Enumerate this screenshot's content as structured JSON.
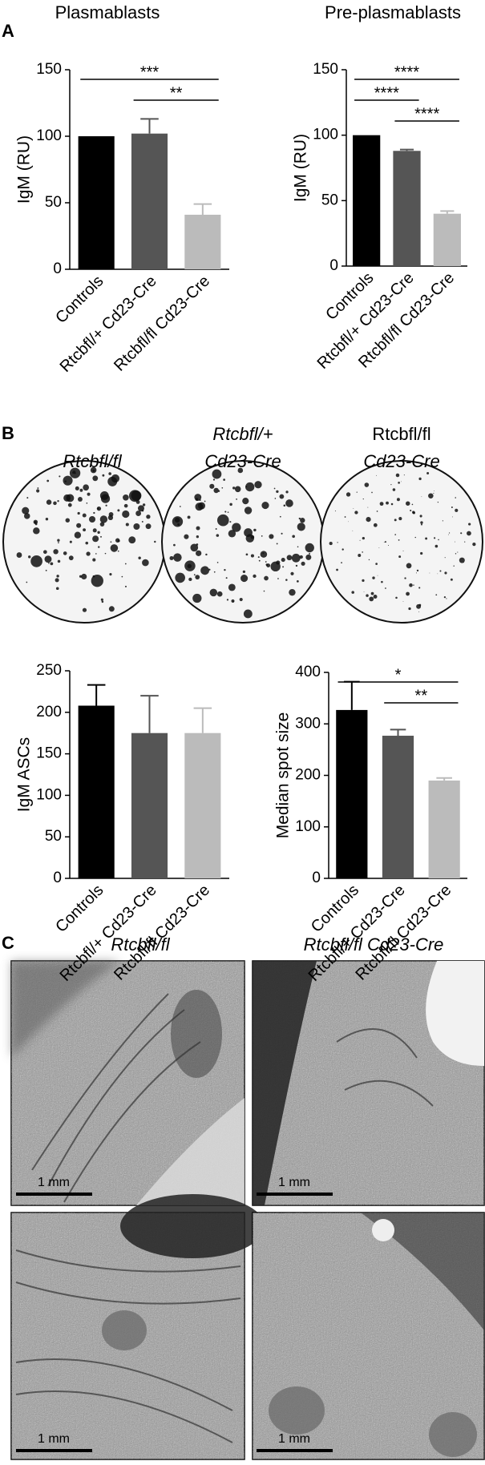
{
  "panel_labels": [
    "A",
    "B",
    "C"
  ],
  "chart_data": [
    {
      "type": "bar",
      "title": "Plasmablasts",
      "y_label": "IgM (RU)",
      "categories": [
        "Controls",
        "Rtcbfl/+ Cd23-Cre",
        "Rtcbfl/fl Cd23-Cre"
      ],
      "values": [
        100,
        102,
        41
      ],
      "errors": [
        null,
        11,
        8
      ],
      "colors": [
        "#000000",
        "#555555",
        "#bbbbbb"
      ],
      "ylim": [
        0,
        150
      ],
      "yticks": [
        0,
        50,
        100,
        150
      ],
      "annotations": [
        {
          "text": "***",
          "from": 0,
          "to": 2
        },
        {
          "text": "**",
          "from": 1,
          "to": 2
        }
      ]
    },
    {
      "type": "bar",
      "title": "Pre-plasmablasts",
      "y_label": "IgM (RU)",
      "categories": [
        "Controls",
        "Rtcbfl/+ Cd23-Cre",
        "Rtcbfl/fl Cd23-Cre"
      ],
      "values": [
        100,
        88,
        40
      ],
      "errors": [
        null,
        1,
        2
      ],
      "colors": [
        "#000000",
        "#555555",
        "#bbbbbb"
      ],
      "ylim": [
        0,
        150
      ],
      "yticks": [
        0,
        50,
        100,
        150
      ],
      "annotations": [
        {
          "text": "****",
          "from": 0,
          "to": 2
        },
        {
          "text": "****",
          "from": 0,
          "to": 1
        },
        {
          "text": "****",
          "from": 1,
          "to": 2
        }
      ]
    },
    {
      "type": "bar",
      "y_label": "IgM ASCs",
      "categories": [
        "Controls",
        "Rtcbfl/+ Cd23-Cre",
        "Rtcbfl/fl Cd23-Cre"
      ],
      "values": [
        208,
        175,
        175
      ],
      "errors": [
        25,
        45,
        30
      ],
      "colors": [
        "#000000",
        "#555555",
        "#bbbbbb"
      ],
      "ylim": [
        0,
        250
      ],
      "yticks": [
        0,
        50,
        100,
        150,
        200,
        250
      ],
      "annotations": []
    },
    {
      "type": "bar",
      "y_label": "Median spot size",
      "categories": [
        "Controls",
        "Rtcbfl/+ Cd23-Cre",
        "Rtcbfl/fl Cd23-Cre"
      ],
      "values": [
        327,
        277,
        190
      ],
      "errors": [
        55,
        12,
        5
      ],
      "colors": [
        "#000000",
        "#555555",
        "#bbbbbb"
      ],
      "ylim": [
        0,
        400
      ],
      "yticks": [
        0,
        100,
        200,
        300,
        400
      ],
      "annotations": [
        {
          "text": "*",
          "from": 0,
          "to": 2
        },
        {
          "text": "**",
          "from": 1,
          "to": 2
        }
      ]
    }
  ],
  "elispot": {
    "labels": [
      [
        "Rtcbfl/fl"
      ],
      [
        "Rtcbfl/+",
        "Cd23-Cre"
      ],
      [
        "Rtcbfl/fl",
        "Cd23-Cre"
      ]
    ]
  },
  "em": {
    "column_labels": [
      "Rtcbfl/fl",
      "Rtcbfl/fl Cd23-Cre"
    ],
    "scale_bars": [
      "1 mm",
      "1 mm",
      "1 mm",
      "1 mm"
    ]
  }
}
